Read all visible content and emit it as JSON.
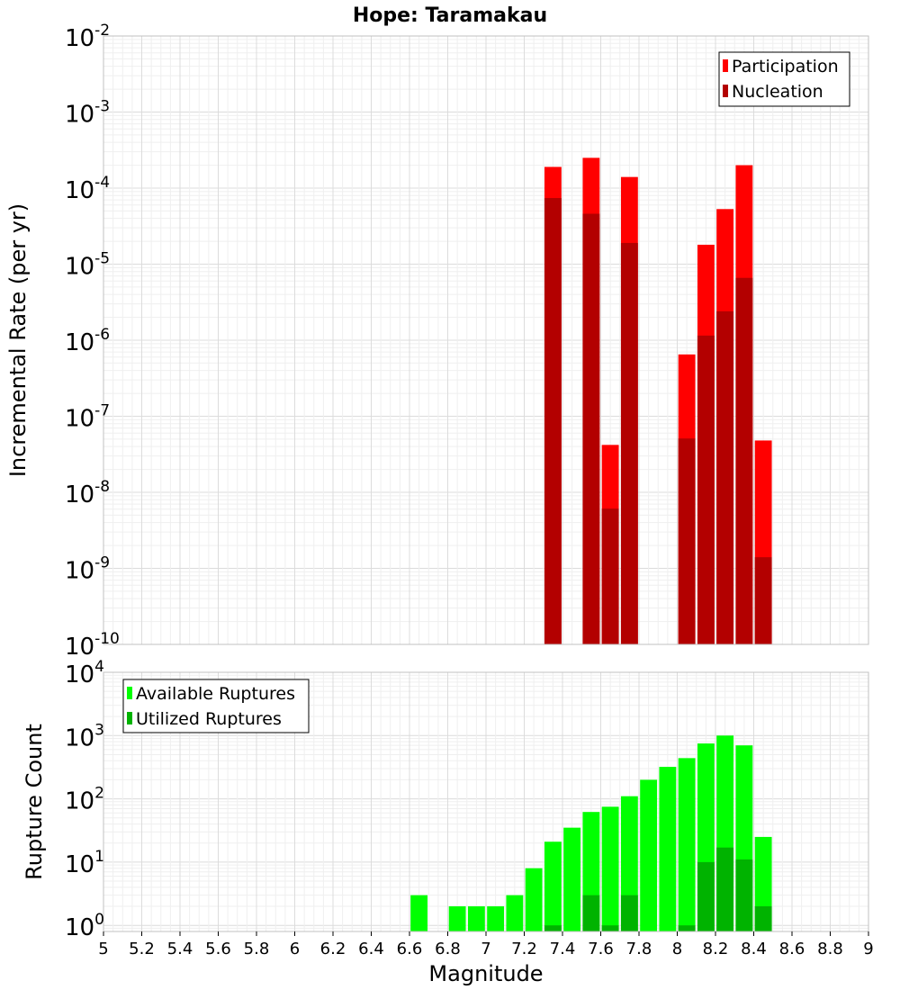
{
  "title": "Hope: Taramakau",
  "colors": {
    "participation": "#ff0000",
    "nucleation": "#b30000",
    "available": "#00ff00",
    "utilized": "#00b300",
    "grid": "#e8e8e8",
    "frame": "#c0c0c0"
  },
  "chart_data": [
    {
      "type": "bar",
      "title": "Hope: Taramakau",
      "xlabel": "Magnitude",
      "ylabel": "Incremental Rate (per yr)",
      "yscale": "log",
      "xlim": [
        5,
        9
      ],
      "ylim": [
        1e-10,
        0.01
      ],
      "grid": true,
      "legend_position": "top-right",
      "x_tick_labels": [
        "5",
        "5.2",
        "5.4",
        "5.6",
        "5.8",
        "6",
        "6.2",
        "6.4",
        "6.6",
        "6.8",
        "7",
        "7.2",
        "7.4",
        "7.6",
        "7.8",
        "8",
        "8.2",
        "8.4",
        "8.6",
        "8.8",
        "9"
      ],
      "y_tick_labels": [
        {
          "base": "10",
          "exp": "-10"
        },
        {
          "base": "10",
          "exp": "-9"
        },
        {
          "base": "10",
          "exp": "-8"
        },
        {
          "base": "10",
          "exp": "-7"
        },
        {
          "base": "10",
          "exp": "-6"
        },
        {
          "base": "10",
          "exp": "-5"
        },
        {
          "base": "10",
          "exp": "-4"
        },
        {
          "base": "10",
          "exp": "-3"
        },
        {
          "base": "10",
          "exp": "-2"
        }
      ],
      "x": [
        7.35,
        7.55,
        7.65,
        7.75,
        8.05,
        8.15,
        8.25,
        8.35,
        8.45
      ],
      "series": [
        {
          "name": "Participation",
          "values": [
            0.00019,
            0.00025,
            4.2e-08,
            0.00014,
            6.5e-07,
            1.8e-05,
            5.3e-05,
            0.0002,
            4.8e-08
          ]
        },
        {
          "name": "Nucleation",
          "values": [
            7.4e-05,
            4.6e-05,
            6.1e-09,
            1.9e-05,
            5.1e-08,
            1.15e-06,
            2.4e-06,
            6.6e-06,
            1.4e-09
          ]
        }
      ]
    },
    {
      "type": "bar",
      "title": "",
      "xlabel": "Magnitude",
      "ylabel": "Rupture Count",
      "yscale": "log",
      "xlim": [
        5,
        9
      ],
      "ylim": [
        0.8,
        10000
      ],
      "grid": true,
      "legend_position": "top-left",
      "y_tick_labels": [
        {
          "base": "10",
          "exp": "0"
        },
        {
          "base": "10",
          "exp": "1"
        },
        {
          "base": "10",
          "exp": "2"
        },
        {
          "base": "10",
          "exp": "3"
        },
        {
          "base": "10",
          "exp": "4"
        }
      ],
      "x": [
        6.65,
        6.85,
        6.95,
        7.05,
        7.15,
        7.25,
        7.35,
        7.45,
        7.55,
        7.65,
        7.75,
        7.85,
        7.95,
        8.05,
        8.15,
        8.25,
        8.35,
        8.45
      ],
      "series": [
        {
          "name": "Available Ruptures",
          "values": [
            3,
            2,
            2,
            2,
            3,
            8,
            21,
            35,
            62,
            75,
            110,
            200,
            320,
            440,
            750,
            1000,
            700,
            25
          ]
        },
        {
          "name": "Utilized Ruptures",
          "values": [
            null,
            null,
            null,
            null,
            null,
            null,
            1,
            null,
            3,
            1,
            3,
            null,
            null,
            1,
            10,
            17,
            11,
            2
          ]
        }
      ]
    }
  ]
}
